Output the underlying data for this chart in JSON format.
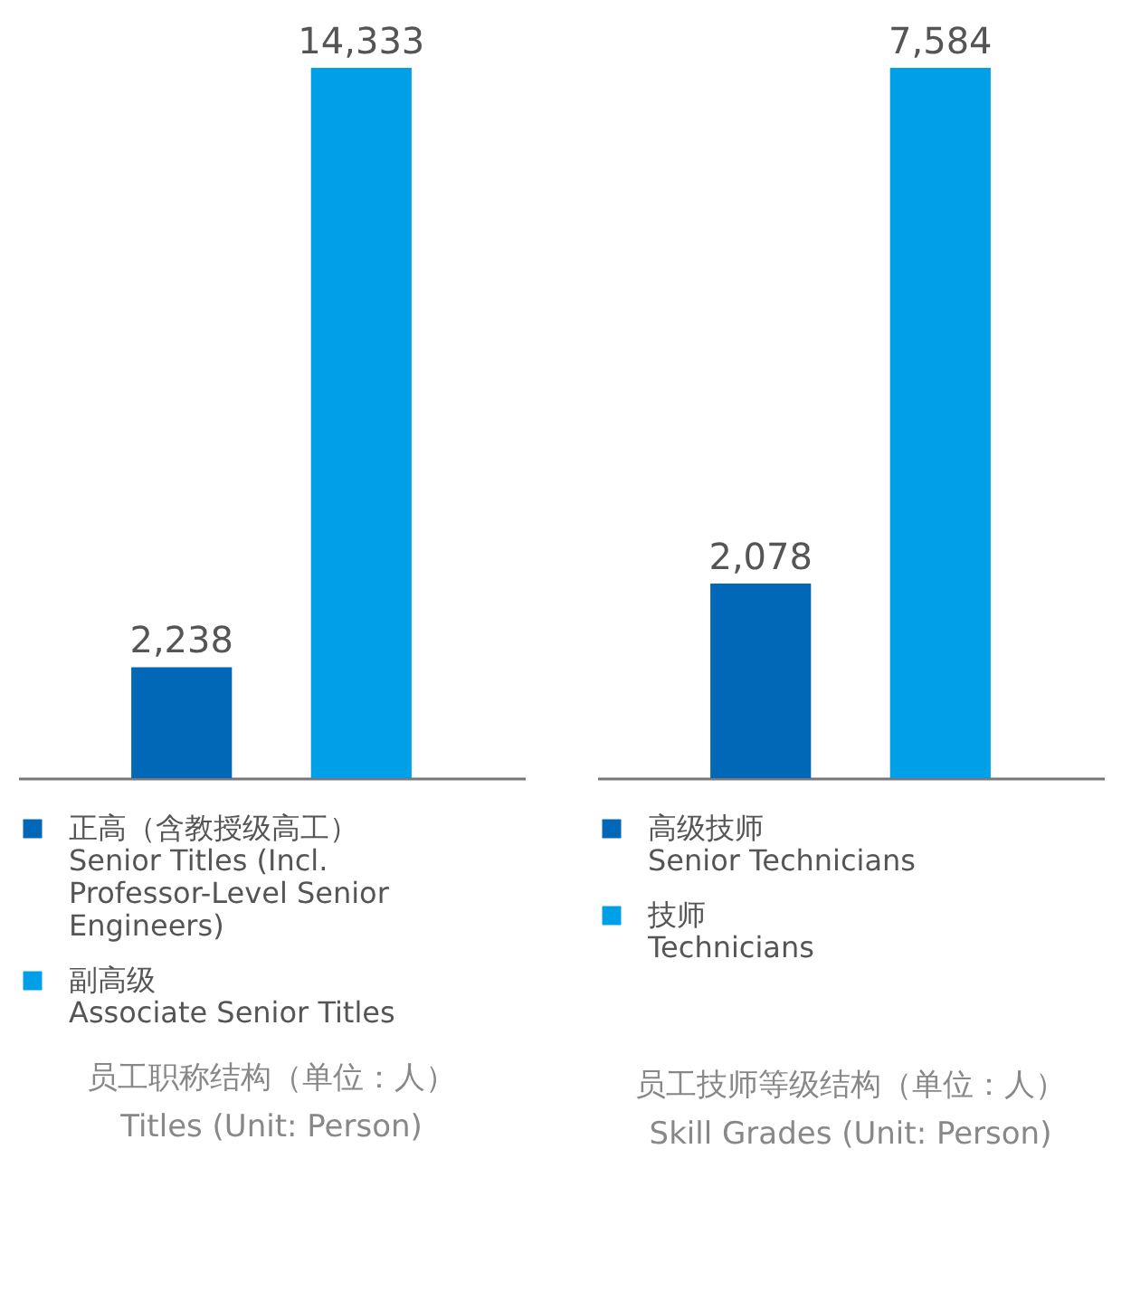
{
  "chart_data": [
    {
      "type": "bar",
      "title": "员工职称结构（单位：人）",
      "subtitle": "Titles (Unit: Person)",
      "categories": [
        null
      ],
      "series": [
        {
          "name": "正高（含教授级高工） Senior Titles (Incl. Professor-Level Senior Engineers)",
          "color": "#0068b7",
          "values": [
            2238
          ],
          "value_labels": [
            "2,238"
          ]
        },
        {
          "name": "副高级 Associate Senior Titles",
          "color": "#00a0e9",
          "values": [
            14333
          ],
          "value_labels": [
            "14,333"
          ]
        }
      ],
      "legend": "bottom",
      "tick_labels": false
    },
    {
      "type": "bar",
      "title": "员工技师等级结构（单位：人）",
      "subtitle": "Skill Grades (Unit: Person)",
      "categories": [
        null
      ],
      "series": [
        {
          "name": "高级技师 Senior Technicians",
          "color": "#0068b7",
          "values": [
            2078
          ],
          "value_labels": [
            "2,078"
          ]
        },
        {
          "name": "技师 Technicians",
          "color": "#00a0e9",
          "values": [
            7584
          ],
          "value_labels": [
            "7,584"
          ]
        }
      ],
      "legend": "bottom",
      "tick_labels": false
    }
  ]
}
